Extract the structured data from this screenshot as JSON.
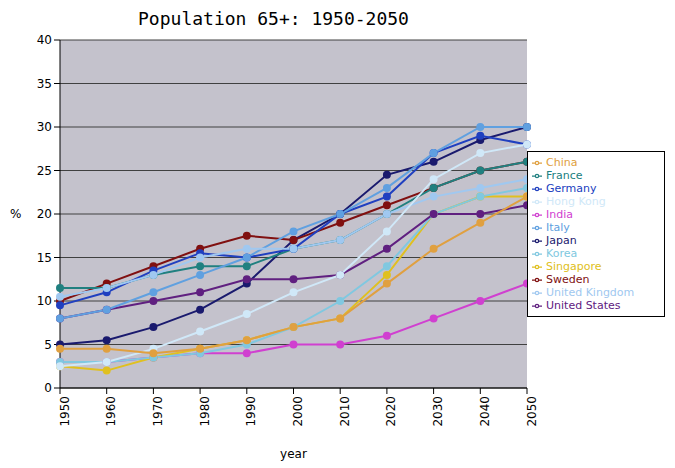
{
  "chart_data": {
    "type": "line",
    "title": "Population 65+: 1950-2050",
    "x_label": "year",
    "y_label": "%",
    "categories": [
      "1950",
      "1960",
      "1970",
      "1980",
      "1990",
      "2000",
      "2010",
      "2020",
      "2030",
      "2040",
      "2050"
    ],
    "ylim": [
      0,
      40
    ],
    "yticks": [
      0,
      5,
      10,
      15,
      20,
      25,
      30,
      35,
      40
    ],
    "grid": true,
    "legend": "right",
    "series": [
      {
        "name": "Japan",
        "color": "#1a1a6e",
        "marker": "circle",
        "values": [
          5,
          5.5,
          7,
          9,
          12,
          17,
          20,
          24.5,
          26,
          28.5,
          30
        ]
      },
      {
        "name": "India",
        "color": "#d040d0",
        "marker": "circle",
        "values": [
          3,
          3,
          3.5,
          4,
          4,
          5,
          5,
          6,
          8,
          10,
          12
        ]
      },
      {
        "name": "Singapore",
        "color": "#e0c020",
        "marker": "circle",
        "values": [
          2.5,
          2,
          3.5,
          4.5,
          5.5,
          7,
          8,
          13,
          20,
          22,
          22
        ]
      },
      {
        "name": "Korea",
        "color": "#80c8e0",
        "marker": "circle",
        "values": [
          3,
          3,
          3.5,
          4,
          5,
          7,
          10,
          14,
          20,
          22,
          23
        ]
      },
      {
        "name": "United States",
        "color": "#602080",
        "marker": "circle",
        "values": [
          8,
          9,
          10,
          11,
          12.5,
          12.5,
          13,
          16,
          20,
          20,
          21
        ]
      },
      {
        "name": "Sweden",
        "color": "#801010",
        "marker": "circle",
        "values": [
          10,
          12,
          14,
          16,
          17.5,
          17,
          19,
          21,
          23,
          25,
          26
        ]
      },
      {
        "name": "France",
        "color": "#208080",
        "marker": "circle",
        "values": [
          11.5,
          11.5,
          13,
          14,
          14,
          16,
          17,
          20,
          23,
          25,
          26
        ]
      },
      {
        "name": "Germany",
        "color": "#2040c0",
        "marker": "circle",
        "values": [
          9.5,
          11,
          13.5,
          15.5,
          15,
          16,
          20,
          22,
          27,
          29,
          28
        ]
      },
      {
        "name": "Italy",
        "color": "#60a0e0",
        "marker": "circle",
        "values": [
          8,
          9,
          11,
          13,
          15,
          18,
          20,
          23,
          27,
          30,
          30
        ]
      },
      {
        "name": "United Kingdom",
        "color": "#a0c8f0",
        "marker": "circle",
        "values": [
          10.5,
          11.5,
          13,
          15,
          16,
          16,
          17,
          20,
          22,
          23,
          24
        ]
      },
      {
        "name": "Hong Kong",
        "color": "#d0e8f8",
        "marker": "circle",
        "values": [
          2.5,
          3,
          4.5,
          6.5,
          8.5,
          11,
          13,
          18,
          24,
          27,
          28
        ]
      },
      {
        "name": "China",
        "color": "#e0a040",
        "marker": "circle",
        "values": [
          4.5,
          4.5,
          4,
          4.5,
          5.5,
          7,
          8,
          12,
          16,
          19,
          22
        ]
      }
    ]
  }
}
